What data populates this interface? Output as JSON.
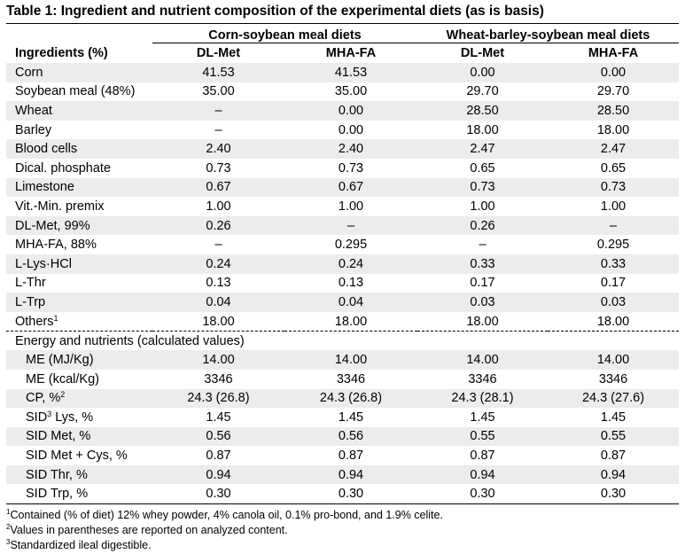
{
  "title": "Table 1: Ingredient and nutrient composition of the experimental diets (as is basis)",
  "groups": [
    "Corn-soybean meal diets",
    "Wheat-barley-soybean meal diets"
  ],
  "header": {
    "first": "Ingredients (%)",
    "cols": [
      "DL-Met",
      "MHA-FA",
      "DL-Met",
      "MHA-FA"
    ]
  },
  "ingredients": [
    {
      "label": "Corn",
      "sup": "",
      "v": [
        "41.53",
        "41.53",
        "0.00",
        "0.00"
      ]
    },
    {
      "label": "Soybean meal (48%)",
      "sup": "",
      "v": [
        "35.00",
        "35.00",
        "29.70",
        "29.70"
      ]
    },
    {
      "label": "Wheat",
      "sup": "",
      "v": [
        "–",
        "0.00",
        "28.50",
        "28.50"
      ]
    },
    {
      "label": "Barley",
      "sup": "",
      "v": [
        "–",
        "0.00",
        "18.00",
        "18.00"
      ]
    },
    {
      "label": "Blood cells",
      "sup": "",
      "v": [
        "2.40",
        "2.40",
        "2.47",
        "2.47"
      ]
    },
    {
      "label": "Dical. phosphate",
      "sup": "",
      "v": [
        "0.73",
        "0.73",
        "0.65",
        "0.65"
      ]
    },
    {
      "label": "Limestone",
      "sup": "",
      "v": [
        "0.67",
        "0.67",
        "0.73",
        "0.73"
      ]
    },
    {
      "label": "Vit.-Min. premix",
      "sup": "",
      "v": [
        "1.00",
        "1.00",
        "1.00",
        "1.00"
      ]
    },
    {
      "label": "DL-Met, 99%",
      "sup": "",
      "v": [
        "0.26",
        "–",
        "0.26",
        "–"
      ]
    },
    {
      "label": "MHA-FA, 88%",
      "sup": "",
      "v": [
        "–",
        "0.295",
        "–",
        "0.295"
      ]
    },
    {
      "label": "L-Lys·HCl",
      "sup": "",
      "v": [
        "0.24",
        "0.24",
        "0.33",
        "0.33"
      ]
    },
    {
      "label": "L-Thr",
      "sup": "",
      "v": [
        "0.13",
        "0.13",
        "0.17",
        "0.17"
      ]
    },
    {
      "label": "L-Trp",
      "sup": "",
      "v": [
        "0.04",
        "0.04",
        "0.03",
        "0.03"
      ]
    },
    {
      "label": "Others",
      "sup": "1",
      "v": [
        "18.00",
        "18.00",
        "18.00",
        "18.00"
      ]
    }
  ],
  "nutrients_heading": "Energy and nutrients (calculated values)",
  "nutrients": [
    {
      "pre": "ME (MJ/Kg)",
      "sup": "",
      "post": "",
      "v": [
        "14.00",
        "14.00",
        "14.00",
        "14.00"
      ]
    },
    {
      "pre": "ME (kcal/Kg)",
      "sup": "",
      "post": "",
      "v": [
        "3346",
        "3346",
        "3346",
        "3346"
      ]
    },
    {
      "pre": "CP, %",
      "sup": "2",
      "post": "",
      "v": [
        "24.3 (26.8)",
        "24.3 (26.8)",
        "24.3 (28.1)",
        "24.3 (27.6)"
      ]
    },
    {
      "pre": "SID",
      "sup": "3",
      "post": " Lys, %",
      "v": [
        "1.45",
        "1.45",
        "1.45",
        "1.45"
      ]
    },
    {
      "pre": "SID Met, %",
      "sup": "",
      "post": "",
      "v": [
        "0.56",
        "0.56",
        "0.55",
        "0.55"
      ]
    },
    {
      "pre": "SID Met + Cys, %",
      "sup": "",
      "post": "",
      "v": [
        "0.87",
        "0.87",
        "0.87",
        "0.87"
      ]
    },
    {
      "pre": "SID Thr, %",
      "sup": "",
      "post": "",
      "v": [
        "0.94",
        "0.94",
        "0.94",
        "0.94"
      ]
    },
    {
      "pre": "SID Trp, %",
      "sup": "",
      "post": "",
      "v": [
        "0.30",
        "0.30",
        "0.30",
        "0.30"
      ]
    }
  ],
  "footnotes": [
    {
      "num": "1",
      "text": "Contained (% of diet) 12% whey powder, 4% canola oil, 0.1% pro-bond, and 1.9% celite."
    },
    {
      "num": "2",
      "text": "Values in parentheses are reported on analyzed content."
    },
    {
      "num": "3",
      "text": "Standardized ileal digestible."
    }
  ]
}
